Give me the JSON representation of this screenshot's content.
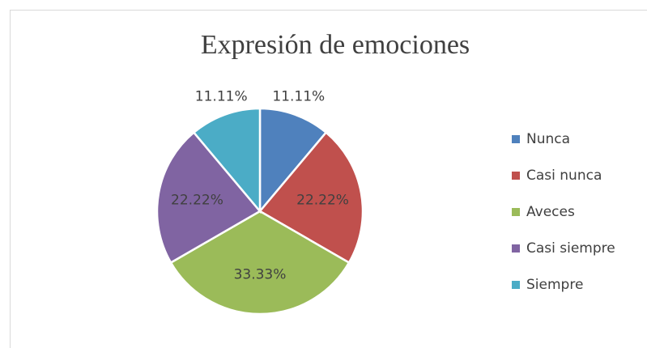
{
  "chart_data": {
    "type": "pie",
    "title": "Expresión de emociones",
    "categories": [
      "Nunca",
      "Casi nunca",
      "Aveces",
      "Casi siempre",
      "Siempre"
    ],
    "values": [
      11.11,
      22.22,
      33.33,
      22.22,
      11.11
    ],
    "value_labels": [
      "11.11%",
      "22.22%",
      "33.33%",
      "22.22%",
      "11.11%"
    ],
    "colors": [
      "#4f81bd",
      "#c0504d",
      "#9bbb59",
      "#8064a2",
      "#4bacc6"
    ],
    "legend": "right"
  }
}
